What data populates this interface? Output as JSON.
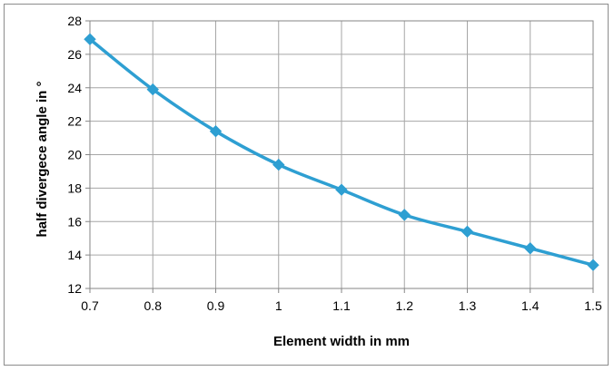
{
  "chart_data": {
    "type": "line",
    "title": "",
    "xlabel": "Element width in mm",
    "ylabel": "half divergece angle in °",
    "x": [
      0.7,
      0.8,
      0.9,
      1.0,
      1.1,
      1.2,
      1.3,
      1.4,
      1.5
    ],
    "x_tick_labels": [
      "0.7",
      "0.8",
      "0.9",
      "1",
      "1.1",
      "1.2",
      "1.3",
      "1.4",
      "1.5"
    ],
    "y_tick_values": [
      12,
      14,
      16,
      18,
      20,
      22,
      24,
      26,
      28
    ],
    "y_tick_labels": [
      "12",
      "14",
      "16",
      "18",
      "20",
      "22",
      "24",
      "26",
      "28"
    ],
    "xlim": [
      0.7,
      1.5
    ],
    "ylim": [
      12,
      28
    ],
    "grid": true,
    "legend": "none",
    "series": [
      {
        "values": [
          26.9,
          23.9,
          21.4,
          19.4,
          17.9,
          16.4,
          15.4,
          14.4,
          13.4
        ],
        "color": "#2e9fd2",
        "marker": "diamond"
      }
    ]
  }
}
